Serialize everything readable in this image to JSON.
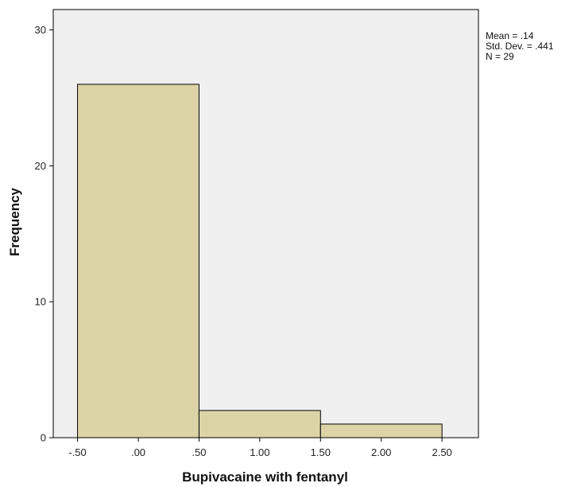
{
  "chart_data": {
    "type": "bar",
    "xlabel": "Bupivacaine with fentanyl",
    "ylabel": "Frequency",
    "x_ticks": [
      "-.50",
      ".00",
      ".50",
      "1.00",
      "1.50",
      "2.00",
      "2.50"
    ],
    "x_tick_values": [
      -0.5,
      0,
      0.5,
      1.0,
      1.5,
      2.0,
      2.5
    ],
    "y_ticks": [
      "0",
      "10",
      "20",
      "30"
    ],
    "y_tick_values": [
      0,
      10,
      20,
      30
    ],
    "xlim": [
      -0.7,
      2.8
    ],
    "ylim": [
      0,
      31.5
    ],
    "bins": [
      {
        "start": -0.5,
        "end": 0.5,
        "value": 26
      },
      {
        "start": 0.5,
        "end": 1.5,
        "value": 2
      },
      {
        "start": 1.5,
        "end": 2.5,
        "value": 1
      }
    ],
    "grid": false,
    "colors": {
      "plot_bg": "#f0f0f0",
      "bar_fill": "#dcd4a6",
      "bar_stroke": "#000000"
    }
  },
  "stats": {
    "mean": "Mean = .14",
    "std_dev": "Std. Dev. = .441",
    "n": "N = 29"
  }
}
